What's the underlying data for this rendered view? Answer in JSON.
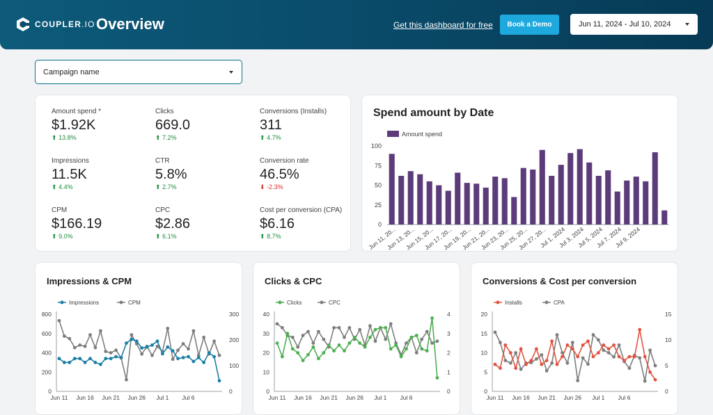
{
  "header": {
    "logo_main": "COUPLER",
    "logo_suffix": ".IO",
    "title": "Overview",
    "link_text": "Get this dashboard for free",
    "demo_button": "Book a Demo",
    "date_range": "Jun 11, 2024 - Jul 10, 2024",
    "colors": {
      "brand_dark": "#063a55",
      "accent": "#1ea9de"
    }
  },
  "filter": {
    "campaign_label": "Campaign name"
  },
  "kpis": [
    {
      "label": "Amount spend *",
      "value": "$1.92K",
      "delta": "13.8%",
      "dir": "up"
    },
    {
      "label": "Clicks",
      "value": "669.0",
      "delta": "7.2%",
      "dir": "up"
    },
    {
      "label": "Conversions (Installs)",
      "value": "311",
      "delta": "4.7%",
      "dir": "up"
    },
    {
      "label": "Impressions",
      "value": "11.5K",
      "delta": "4.4%",
      "dir": "up"
    },
    {
      "label": "CTR",
      "value": "5.8%",
      "delta": "2.7%",
      "dir": "up"
    },
    {
      "label": "Conversion rate",
      "value": "46.5%",
      "delta": "-2.3%",
      "dir": "down"
    },
    {
      "label": "CPM",
      "value": "$166.19",
      "delta": "9.0%",
      "dir": "up"
    },
    {
      "label": "CPC",
      "value": "$2.86",
      "delta": "6.1%",
      "dir": "up"
    },
    {
      "label": "Cost per conversion (CPA)",
      "value": "$6.16",
      "delta": "8.7%",
      "dir": "up"
    }
  ],
  "chart_data": [
    {
      "id": "spend",
      "type": "bar",
      "title": "Spend amount by Date",
      "legend": [
        "Amount spend"
      ],
      "color": "#5c3b7a",
      "ylim": [
        0,
        100
      ],
      "yticks": [
        0,
        25,
        50,
        75,
        100
      ],
      "tick_labels": [
        "Jun 11, 20...",
        "Jun 13, 20...",
        "Jun 15, 20...",
        "Jun 17, 20...",
        "Jun 19, 20...",
        "Jun 21, 20...",
        "Jun 23, 20...",
        "Jun 25, 20...",
        "Jun 27, 20...",
        "Jul 1, 2024",
        "Jul 3, 2024",
        "Jul 5, 2024",
        "Jul 7, 2024",
        "Jul 9, 2024"
      ],
      "values": [
        90,
        62,
        68,
        64,
        55,
        50,
        43,
        66,
        53,
        52,
        47,
        61,
        59,
        35,
        72,
        70,
        95,
        62,
        76,
        91,
        96,
        79,
        62,
        69,
        42,
        56,
        61,
        55,
        92,
        18
      ]
    },
    {
      "id": "impressions_cpm",
      "type": "line",
      "title": "Impressions & CPM",
      "legend": [
        "Impressions",
        "CPM"
      ],
      "colors": [
        "#1a7fa6",
        "#7d7d7d"
      ],
      "x_ticks": [
        "Jun 11",
        "Jun 16",
        "Jun 21",
        "Jun 26",
        "Jul 1",
        "Jul 6"
      ],
      "y_left": {
        "ticks": [
          0,
          200,
          400,
          600,
          800
        ],
        "max": 800
      },
      "y_right": {
        "ticks": [
          0,
          100,
          200,
          300
        ],
        "max": 300
      },
      "series": [
        {
          "name": "Impressions",
          "axis": "left",
          "values": [
            340,
            300,
            300,
            340,
            340,
            300,
            340,
            300,
            280,
            340,
            340,
            360,
            350,
            500,
            540,
            520,
            450,
            460,
            480,
            520,
            390,
            460,
            420,
            340,
            350,
            360,
            310,
            350,
            300,
            400,
            360,
            110
          ]
        },
        {
          "name": "CPM",
          "axis": "right",
          "values": [
            275,
            215,
            205,
            170,
            180,
            175,
            220,
            170,
            235,
            155,
            150,
            160,
            130,
            45,
            220,
            185,
            145,
            175,
            140,
            175,
            155,
            245,
            125,
            160,
            185,
            165,
            235,
            140,
            210,
            145,
            195,
            140
          ]
        }
      ]
    },
    {
      "id": "clicks_cpc",
      "type": "line",
      "title": "Clicks & CPC",
      "legend": [
        "Clicks",
        "CPC"
      ],
      "colors": [
        "#4caf50",
        "#7d7d7d"
      ],
      "x_ticks": [
        "Jun 11",
        "Jun 16",
        "Jun 21",
        "Jun 26",
        "Jul 1",
        "Jul 6"
      ],
      "y_left": {
        "ticks": [
          0,
          10,
          20,
          30,
          40
        ],
        "max": 40
      },
      "y_right": {
        "ticks": [
          0,
          1,
          2,
          3,
          4
        ],
        "max": 4
      },
      "series": [
        {
          "name": "Clicks",
          "axis": "left",
          "values": [
            25,
            18,
            30,
            22,
            20,
            16,
            19,
            23,
            17,
            20,
            24,
            21,
            24,
            21,
            25,
            28,
            25,
            23,
            28,
            32,
            33,
            33,
            22,
            24,
            18,
            22,
            28,
            29,
            22,
            21,
            38,
            7
          ]
        },
        {
          "name": "CPC",
          "axis": "right",
          "values": [
            3.5,
            3.3,
            2.9,
            2.8,
            2.3,
            2.9,
            3.1,
            2.5,
            3.1,
            2.7,
            2.3,
            3.3,
            3.3,
            2.8,
            3.3,
            2.7,
            3.2,
            2.4,
            3.4,
            2.6,
            3.3,
            2.7,
            3.5,
            2.5,
            1.9,
            2.5,
            2.8,
            2.0,
            2.7,
            3.1,
            2.5,
            2.6
          ]
        }
      ]
    },
    {
      "id": "conversions_cpa",
      "type": "line",
      "title": "Conversions & Cost per conversion",
      "legend": [
        "Installs",
        "CPA"
      ],
      "colors": [
        "#e0533f",
        "#7d7d7d"
      ],
      "x_ticks": [
        "Jun 11",
        "Jun 16",
        "Jun 21",
        "Jun 26",
        "Jul 1",
        "Jul 6"
      ],
      "y_left": {
        "ticks": [
          0,
          5,
          10,
          15,
          20
        ],
        "max": 20
      },
      "y_right": {
        "ticks": [
          0,
          5,
          10,
          15
        ],
        "max": 15
      },
      "series": [
        {
          "name": "Installs",
          "axis": "left",
          "values": [
            7,
            6,
            12,
            10,
            6,
            11,
            7,
            8,
            11,
            7,
            8,
            13,
            7,
            9,
            12,
            11,
            9,
            12,
            13,
            9,
            10,
            12,
            11,
            12,
            9,
            8,
            9,
            9,
            16,
            9,
            5,
            3
          ]
        },
        {
          "name": "CPA",
          "axis": "right",
          "values": [
            11.5,
            9.5,
            6.0,
            5.5,
            7.5,
            4.3,
            5.5,
            5.6,
            6.3,
            7.1,
            4.0,
            5.5,
            11.0,
            7.5,
            5.5,
            9.5,
            2.1,
            6.5,
            5.3,
            11.0,
            10.0,
            8.0,
            7.5,
            6.7,
            9.0,
            5.8,
            4.5,
            7.0,
            6.5,
            2.0,
            8.0,
            5.0
          ]
        }
      ]
    }
  ]
}
